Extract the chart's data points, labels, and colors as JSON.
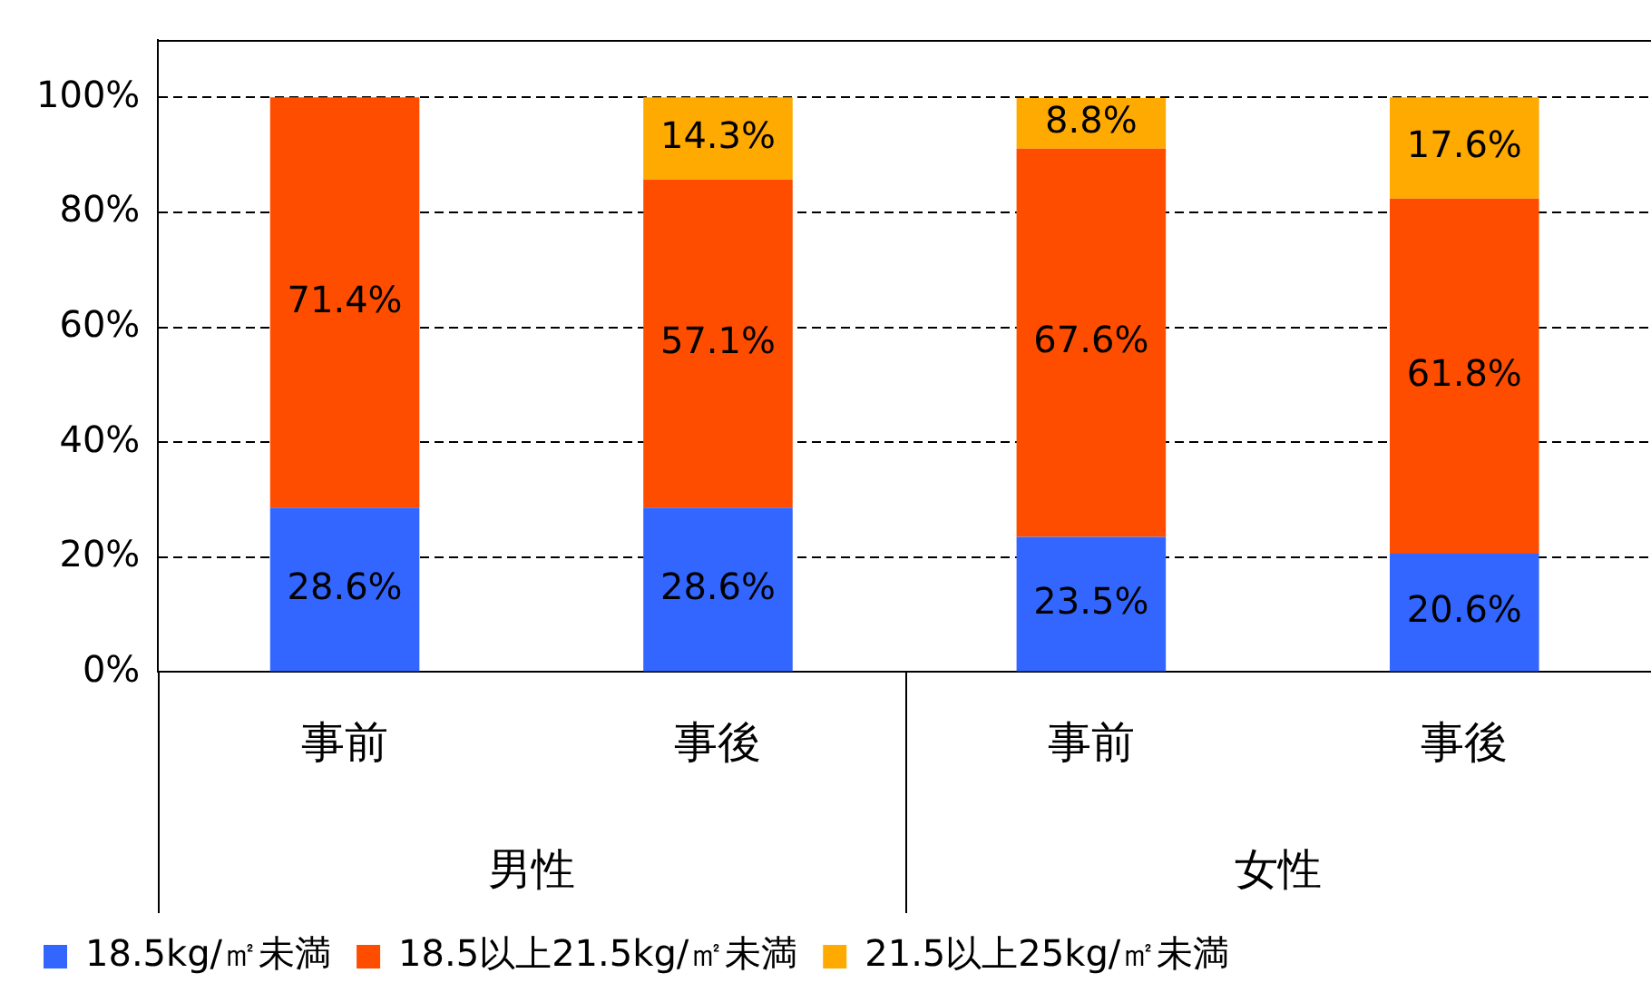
{
  "chart_data": {
    "type": "bar",
    "stacked": true,
    "categories": [
      "事前",
      "事後",
      "事前",
      "事後"
    ],
    "annotations": [
      "男性",
      "女性"
    ],
    "series": [
      {
        "name": "18.5kg/㎡未満",
        "color": "#3366ff",
        "values": [
          28.6,
          28.6,
          23.5,
          20.6
        ],
        "value_labels": [
          "28.6%",
          "28.6%",
          "23.5%",
          "20.6%"
        ]
      },
      {
        "name": "18.5以上21.5kg/㎡未満",
        "color": "#ff4d00",
        "values": [
          71.4,
          57.1,
          67.6,
          61.8
        ],
        "value_labels": [
          "71.4%",
          "57.1%",
          "67.6%",
          "61.8%"
        ]
      },
      {
        "name": "21.5以上25kg/㎡未満",
        "color": "#ffaa00",
        "values": [
          null,
          14.3,
          8.8,
          17.6
        ],
        "value_labels": [
          null,
          "14.3%",
          "8.8%",
          "17.6%"
        ]
      }
    ],
    "ylim": [
      0,
      110
    ],
    "yticks": [
      {
        "value": 0,
        "label": "0%"
      },
      {
        "value": 20,
        "label": "20%"
      },
      {
        "value": 40,
        "label": "40%"
      },
      {
        "value": 60,
        "label": "60%"
      },
      {
        "value": 80,
        "label": "80%"
      },
      {
        "value": 100,
        "label": "100%"
      }
    ],
    "grid": "y",
    "legend": "bottom"
  }
}
